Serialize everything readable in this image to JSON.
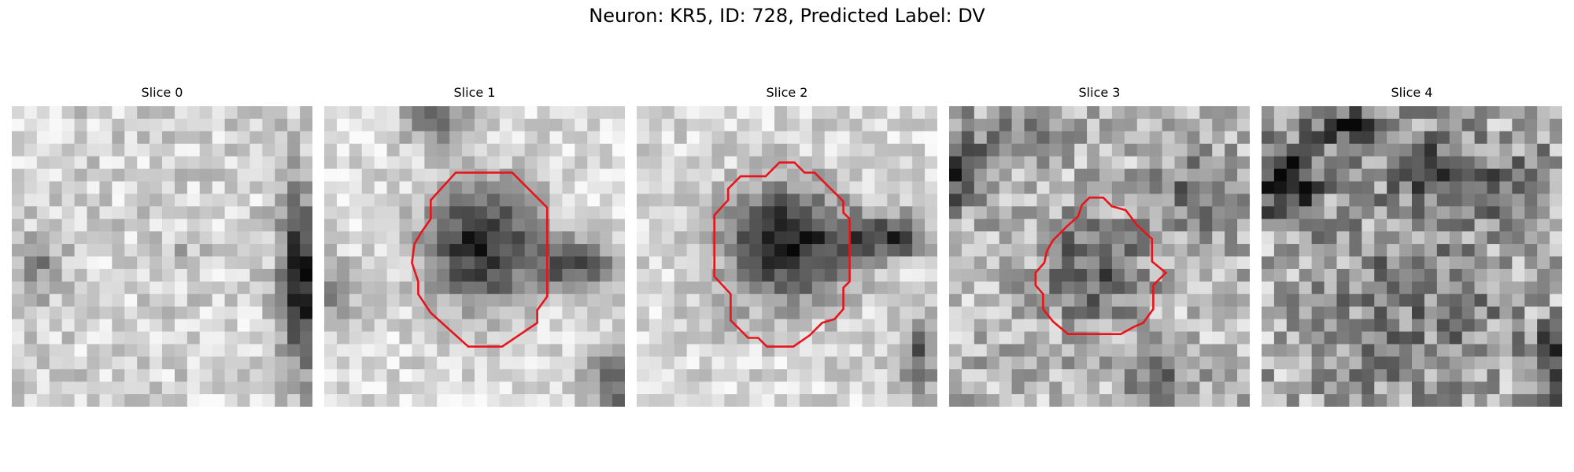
{
  "figure": {
    "title": "Neuron: KR5, ID: 728, Predicted Label: DV",
    "contour_color": "#e8141b",
    "colormap": "grayscale",
    "panels": [
      {
        "title": "Slice 0",
        "has_contour": false
      },
      {
        "title": "Slice 1",
        "has_contour": true
      },
      {
        "title": "Slice 2",
        "has_contour": true
      },
      {
        "title": "Slice 3",
        "has_contour": true
      },
      {
        "title": "Slice 4",
        "has_contour": false
      }
    ]
  }
}
